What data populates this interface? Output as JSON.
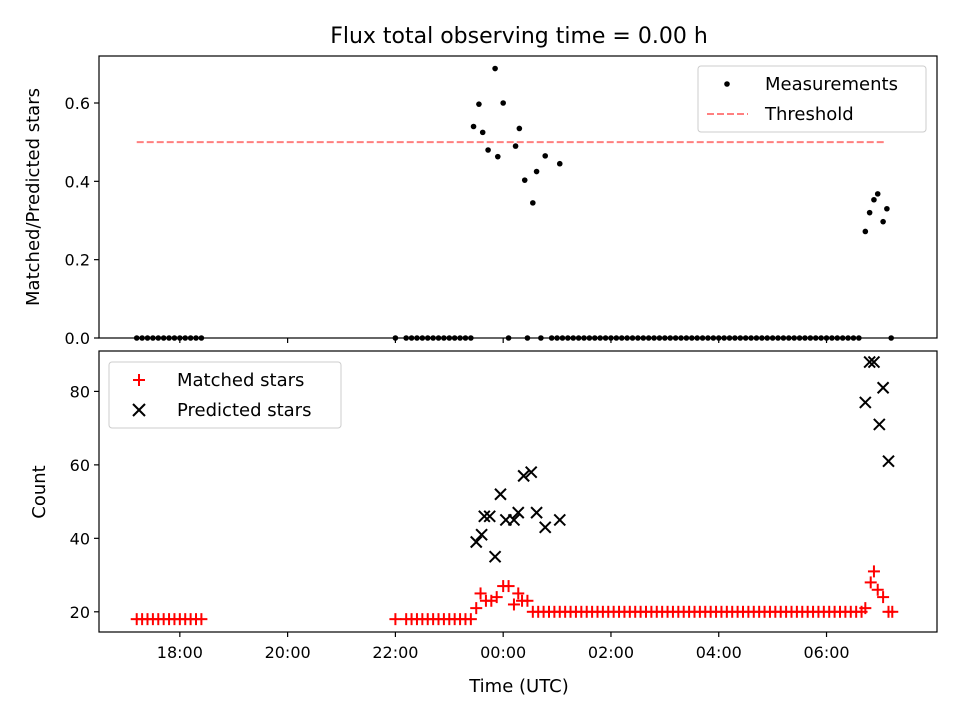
{
  "title": "Flux total observing time = 0.00 h",
  "chart_data": [
    {
      "type": "scatter",
      "ylabel": "Matched/Predicted stars",
      "xlabel": "",
      "ylim": [
        0,
        0.72
      ],
      "yticks": [
        0.0,
        0.2,
        0.4,
        0.6
      ],
      "ytick_labels": [
        "0.0",
        "0.2",
        "0.4",
        "0.6"
      ],
      "legend_position": "top-right",
      "grid": false,
      "series": [
        {
          "name": "Measurements",
          "marker": "dot",
          "color": "#000000",
          "points": [
            [
              -6.8,
              0
            ],
            [
              -6.7,
              0
            ],
            [
              -6.6,
              0
            ],
            [
              -6.5,
              0
            ],
            [
              -6.4,
              0
            ],
            [
              -6.3,
              0
            ],
            [
              -6.2,
              0
            ],
            [
              -6.1,
              0
            ],
            [
              -6.0,
              0
            ],
            [
              -5.9,
              0
            ],
            [
              -5.8,
              0
            ],
            [
              -5.7,
              0
            ],
            [
              -5.6,
              0
            ],
            [
              -2.0,
              0
            ],
            [
              -1.8,
              0
            ],
            [
              -1.7,
              0
            ],
            [
              -1.6,
              0
            ],
            [
              -1.5,
              0
            ],
            [
              -1.4,
              0
            ],
            [
              -1.3,
              0
            ],
            [
              -1.2,
              0
            ],
            [
              -1.1,
              0
            ],
            [
              -1.0,
              0
            ],
            [
              -0.9,
              0
            ],
            [
              -0.8,
              0
            ],
            [
              -0.7,
              0
            ],
            [
              -0.6,
              0
            ],
            [
              -0.55,
              0.54
            ],
            [
              -0.45,
              0.597
            ],
            [
              -0.38,
              0.525
            ],
            [
              -0.28,
              0.48
            ],
            [
              -0.1,
              0.463
            ],
            [
              0.0,
              0.6
            ],
            [
              0.1,
              0
            ],
            [
              0.23,
              0.49
            ],
            [
              0.3,
              0.535
            ],
            [
              0.4,
              0.403
            ],
            [
              0.45,
              0
            ],
            [
              0.55,
              0.345
            ],
            [
              0.62,
              0.425
            ],
            [
              0.7,
              0
            ],
            [
              0.78,
              0.465
            ],
            [
              0.9,
              0
            ],
            [
              1.0,
              0
            ],
            [
              1.05,
              0.445
            ],
            [
              1.1,
              0
            ],
            [
              1.2,
              0
            ],
            [
              1.3,
              0
            ],
            [
              1.4,
              0
            ],
            [
              1.5,
              0
            ],
            [
              1.6,
              0
            ],
            [
              1.7,
              0
            ],
            [
              1.8,
              0
            ],
            [
              1.9,
              0
            ],
            [
              2.0,
              0
            ],
            [
              2.1,
              0
            ],
            [
              2.2,
              0
            ],
            [
              2.3,
              0
            ],
            [
              2.4,
              0
            ],
            [
              2.5,
              0
            ],
            [
              2.6,
              0
            ],
            [
              2.7,
              0
            ],
            [
              2.8,
              0
            ],
            [
              2.9,
              0
            ],
            [
              3.0,
              0
            ],
            [
              3.1,
              0
            ],
            [
              3.2,
              0
            ],
            [
              3.3,
              0
            ],
            [
              3.4,
              0
            ],
            [
              3.5,
              0
            ],
            [
              3.6,
              0
            ],
            [
              3.7,
              0
            ],
            [
              3.8,
              0
            ],
            [
              3.9,
              0
            ],
            [
              4.0,
              0
            ],
            [
              4.1,
              0
            ],
            [
              4.2,
              0
            ],
            [
              4.3,
              0
            ],
            [
              4.4,
              0
            ],
            [
              4.5,
              0
            ],
            [
              4.6,
              0
            ],
            [
              4.7,
              0
            ],
            [
              4.8,
              0
            ],
            [
              4.9,
              0
            ],
            [
              5.0,
              0
            ],
            [
              5.1,
              0
            ],
            [
              5.2,
              0
            ],
            [
              5.3,
              0
            ],
            [
              5.4,
              0
            ],
            [
              5.5,
              0
            ],
            [
              5.6,
              0
            ],
            [
              5.7,
              0
            ],
            [
              5.8,
              0
            ],
            [
              5.9,
              0
            ],
            [
              6.0,
              0
            ],
            [
              6.1,
              0
            ],
            [
              6.2,
              0
            ],
            [
              6.3,
              0
            ],
            [
              6.4,
              0
            ],
            [
              6.5,
              0
            ],
            [
              6.6,
              0
            ],
            [
              6.72,
              0.272
            ],
            [
              6.8,
              0.32
            ],
            [
              6.88,
              0.353
            ],
            [
              6.95,
              0.368
            ],
            [
              7.05,
              0.297
            ],
            [
              7.12,
              0.33
            ],
            [
              7.2,
              0
            ],
            [
              -0.15,
              0.688
            ]
          ]
        },
        {
          "name": "Threshold",
          "style": "dashed",
          "color": "#ff7f7f",
          "x": [
            -6.8,
            7.1
          ],
          "y": [
            0.5,
            0.5
          ]
        }
      ]
    },
    {
      "type": "scatter",
      "ylabel": "Count",
      "xlabel": "Time (UTC)",
      "ylim": [
        14.5,
        91
      ],
      "yticks": [
        20,
        40,
        60,
        80
      ],
      "ytick_labels": [
        "20",
        "40",
        "60",
        "80"
      ],
      "xticks": [
        -6,
        -4,
        -2,
        0,
        2,
        4,
        6
      ],
      "xtick_labels": [
        "18:00",
        "20:00",
        "22:00",
        "00:00",
        "02:00",
        "04:00",
        "06:00"
      ],
      "xlim": [
        -7.5,
        8.05
      ],
      "legend_position": "top-left",
      "grid": false,
      "series": [
        {
          "name": "Matched stars",
          "marker": "plus",
          "color": "#ff0000",
          "points": [
            [
              -6.8,
              18
            ],
            [
              -6.7,
              18
            ],
            [
              -6.6,
              18
            ],
            [
              -6.5,
              18
            ],
            [
              -6.4,
              18
            ],
            [
              -6.3,
              18
            ],
            [
              -6.2,
              18
            ],
            [
              -6.1,
              18
            ],
            [
              -6.0,
              18
            ],
            [
              -5.9,
              18
            ],
            [
              -5.8,
              18
            ],
            [
              -5.7,
              18
            ],
            [
              -5.6,
              18
            ],
            [
              -2.0,
              18
            ],
            [
              -1.8,
              18
            ],
            [
              -1.7,
              18
            ],
            [
              -1.6,
              18
            ],
            [
              -1.5,
              18
            ],
            [
              -1.4,
              18
            ],
            [
              -1.3,
              18
            ],
            [
              -1.2,
              18
            ],
            [
              -1.1,
              18
            ],
            [
              -1.0,
              18
            ],
            [
              -0.9,
              18
            ],
            [
              -0.8,
              18
            ],
            [
              -0.7,
              18
            ],
            [
              -0.6,
              18
            ],
            [
              -0.5,
              21
            ],
            [
              -0.42,
              25
            ],
            [
              -0.32,
              23
            ],
            [
              -0.22,
              23
            ],
            [
              -0.12,
              24
            ],
            [
              0.0,
              27
            ],
            [
              0.1,
              27
            ],
            [
              0.2,
              22
            ],
            [
              0.28,
              25
            ],
            [
              0.35,
              23
            ],
            [
              0.45,
              23
            ],
            [
              0.55,
              20
            ],
            [
              0.65,
              20
            ],
            [
              0.75,
              20
            ],
            [
              0.85,
              20
            ],
            [
              0.95,
              20
            ],
            [
              1.05,
              20
            ],
            [
              1.15,
              20
            ],
            [
              1.25,
              20
            ],
            [
              1.35,
              20
            ],
            [
              1.45,
              20
            ],
            [
              1.55,
              20
            ],
            [
              1.65,
              20
            ],
            [
              1.75,
              20
            ],
            [
              1.85,
              20
            ],
            [
              1.95,
              20
            ],
            [
              2.05,
              20
            ],
            [
              2.15,
              20
            ],
            [
              2.25,
              20
            ],
            [
              2.35,
              20
            ],
            [
              2.45,
              20
            ],
            [
              2.55,
              20
            ],
            [
              2.65,
              20
            ],
            [
              2.75,
              20
            ],
            [
              2.85,
              20
            ],
            [
              2.95,
              20
            ],
            [
              3.05,
              20
            ],
            [
              3.15,
              20
            ],
            [
              3.25,
              20
            ],
            [
              3.35,
              20
            ],
            [
              3.45,
              20
            ],
            [
              3.55,
              20
            ],
            [
              3.65,
              20
            ],
            [
              3.75,
              20
            ],
            [
              3.85,
              20
            ],
            [
              3.95,
              20
            ],
            [
              4.05,
              20
            ],
            [
              4.15,
              20
            ],
            [
              4.25,
              20
            ],
            [
              4.35,
              20
            ],
            [
              4.45,
              20
            ],
            [
              4.55,
              20
            ],
            [
              4.65,
              20
            ],
            [
              4.75,
              20
            ],
            [
              4.85,
              20
            ],
            [
              4.95,
              20
            ],
            [
              5.05,
              20
            ],
            [
              5.15,
              20
            ],
            [
              5.25,
              20
            ],
            [
              5.35,
              20
            ],
            [
              5.45,
              20
            ],
            [
              5.55,
              20
            ],
            [
              5.65,
              20
            ],
            [
              5.75,
              20
            ],
            [
              5.85,
              20
            ],
            [
              5.95,
              20
            ],
            [
              6.05,
              20
            ],
            [
              6.15,
              20
            ],
            [
              6.25,
              20
            ],
            [
              6.35,
              20
            ],
            [
              6.45,
              20
            ],
            [
              6.55,
              20
            ],
            [
              6.65,
              20
            ],
            [
              6.72,
              21
            ],
            [
              6.82,
              28
            ],
            [
              6.88,
              31
            ],
            [
              6.95,
              26
            ],
            [
              7.05,
              24
            ],
            [
              7.15,
              20
            ],
            [
              7.22,
              20
            ]
          ]
        },
        {
          "name": "Predicted stars",
          "marker": "x",
          "color": "#000000",
          "points": [
            [
              -0.5,
              39
            ],
            [
              -0.4,
              41
            ],
            [
              -0.35,
              46
            ],
            [
              -0.25,
              46
            ],
            [
              -0.15,
              35
            ],
            [
              -0.05,
              52
            ],
            [
              0.05,
              45
            ],
            [
              0.2,
              45
            ],
            [
              0.28,
              47
            ],
            [
              0.38,
              57
            ],
            [
              0.52,
              58
            ],
            [
              0.62,
              47
            ],
            [
              0.78,
              43
            ],
            [
              1.05,
              45
            ],
            [
              6.72,
              77
            ],
            [
              6.8,
              88
            ],
            [
              6.88,
              88
            ],
            [
              6.98,
              71
            ],
            [
              7.05,
              81
            ],
            [
              7.15,
              61
            ]
          ]
        }
      ]
    }
  ]
}
